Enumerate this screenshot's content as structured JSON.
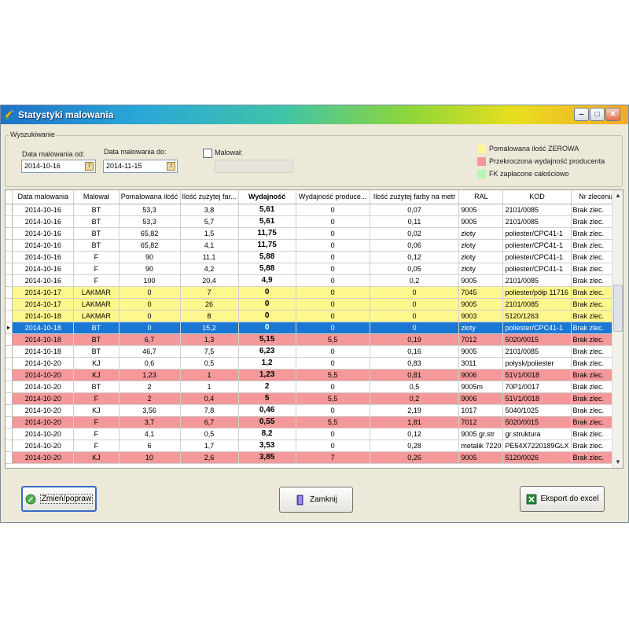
{
  "window": {
    "title": "Statystyki malowania",
    "min": "‒",
    "max": "□",
    "close": "✕"
  },
  "search": {
    "legend": "Wyszukiwanie",
    "date_from_label": "Data malowania od:",
    "date_from_value": "2014-10-16",
    "date_to_label": "Data malowania do:",
    "date_to_value": "2014-11-15",
    "malowal_label": "Malował:"
  },
  "legend": {
    "zero": "Pomalowana ilość ZEROWA",
    "exceeded": "Przekroczona wydajność producenta",
    "paid": "FK zapłacone całościowo"
  },
  "colors": {
    "yellow": "#fdf88e",
    "red": "#f4989a",
    "green": "#b8f5b0",
    "selected": "#1a78d4"
  },
  "columns": [
    "Data malowania",
    "Malował",
    "Pomalowana ilość",
    "Ilość zużytej far...",
    "Wydajność",
    "Wydajność produce...",
    "Ilość zużytej farby na metr",
    "RAL",
    "KOD",
    "Nr zlecenia"
  ],
  "rows": [
    {
      "type": "white",
      "cells": [
        "2014-10-16",
        "BT",
        "53,3",
        "3,8",
        "5,61",
        "0",
        "0,07",
        "9005",
        "2101/0085",
        "Brak zlec."
      ]
    },
    {
      "type": "white",
      "cells": [
        "2014-10-16",
        "BT",
        "53,3",
        "5,7",
        "5,61",
        "0",
        "0,11",
        "9005",
        "2101/0085",
        "Brak zlec."
      ]
    },
    {
      "type": "white",
      "cells": [
        "2014-10-16",
        "BT",
        "65,82",
        "1,5",
        "11,75",
        "0",
        "0,02",
        "złoty",
        "poliester/CPC41-1",
        "Brak zlec."
      ]
    },
    {
      "type": "white",
      "cells": [
        "2014-10-16",
        "BT",
        "65,82",
        "4,1",
        "11,75",
        "0",
        "0,06",
        "złoty",
        "poliester/CPC41-1",
        "Brak zlec."
      ]
    },
    {
      "type": "white",
      "cells": [
        "2014-10-16",
        "F",
        "90",
        "11,1",
        "5,88",
        "0",
        "0,12",
        "złoty",
        "poliester/CPC41-1",
        "Brak zlec."
      ]
    },
    {
      "type": "white",
      "cells": [
        "2014-10-16",
        "F",
        "90",
        "4,2",
        "5,88",
        "0",
        "0,05",
        "złoty",
        "poliester/CPC41-1",
        "Brak zlec."
      ]
    },
    {
      "type": "white",
      "cells": [
        "2014-10-16",
        "F",
        "100",
        "20,4",
        "4,9",
        "0",
        "0,2",
        "9005",
        "2101/0085",
        "Brak zlec."
      ]
    },
    {
      "type": "yellow",
      "cells": [
        "2014-10-17",
        "LAKMAR",
        "0",
        "7",
        "0",
        "0",
        "0",
        "7045",
        "poliester/półp 11716",
        "Brak zlec."
      ]
    },
    {
      "type": "yellow",
      "cells": [
        "2014-10-17",
        "LAKMAR",
        "0",
        "26",
        "0",
        "0",
        "0",
        "9005",
        "2101/0085",
        "Brak zlec."
      ]
    },
    {
      "type": "yellow",
      "cells": [
        "2014-10-18",
        "LAKMAR",
        "0",
        "8",
        "0",
        "0",
        "0",
        "9003",
        "5120/1263",
        "Brak zlec."
      ]
    },
    {
      "type": "sel",
      "cells": [
        "2014-10-18",
        "BT",
        "0",
        "15,2",
        "0",
        "0",
        "0",
        "złoty",
        "poliester/CPC41-1",
        "Brak zlec."
      ]
    },
    {
      "type": "red",
      "cells": [
        "2014-10-18",
        "BT",
        "6,7",
        "1,3",
        "5,15",
        "5,5",
        "0,19",
        "7012",
        "5020/0015",
        "Brak zlec."
      ]
    },
    {
      "type": "white",
      "cells": [
        "2014-10-18",
        "BT",
        "46,7",
        "7,5",
        "6,23",
        "0",
        "0,16",
        "9005",
        "2101/0085",
        "Brak zlec."
      ]
    },
    {
      "type": "white",
      "cells": [
        "2014-10-20",
        "KJ",
        "0,6",
        "0,5",
        "1,2",
        "0",
        "0,83",
        "3011",
        "połysk/poliester",
        "Brak zlec."
      ]
    },
    {
      "type": "red",
      "cells": [
        "2014-10-20",
        "KJ",
        "1,23",
        "1",
        "1,23",
        "5,5",
        "0,81",
        "9006",
        "51V1/0018",
        "Brak zlec."
      ]
    },
    {
      "type": "white",
      "cells": [
        "2014-10-20",
        "BT",
        "2",
        "1",
        "2",
        "0",
        "0,5",
        "9005m",
        "70P1/0017",
        "Brak zlec."
      ]
    },
    {
      "type": "red",
      "cells": [
        "2014-10-20",
        "F",
        "2",
        "0,4",
        "5",
        "5,5",
        "0,2",
        "9006",
        "51V1/0018",
        "Brak zlec."
      ]
    },
    {
      "type": "white",
      "cells": [
        "2014-10-20",
        "KJ",
        "3,56",
        "7,8",
        "0,46",
        "0",
        "2,19",
        "1017",
        "5040/1025",
        "Brak zlec."
      ]
    },
    {
      "type": "red",
      "cells": [
        "2014-10-20",
        "F",
        "3,7",
        "6,7",
        "0,55",
        "5,5",
        "1,81",
        "7012",
        "5020/0015",
        "Brak zlec."
      ]
    },
    {
      "type": "white",
      "cells": [
        "2014-10-20",
        "F",
        "4,1",
        "0,5",
        "8,2",
        "0",
        "0,12",
        "9005 gr.str",
        "gr.struktura",
        "Brak zlec."
      ]
    },
    {
      "type": "white",
      "cells": [
        "2014-10-20",
        "F",
        "6",
        "1,7",
        "3,53",
        "0",
        "0,28",
        "metalik 7220",
        "PE54X7220189GLX",
        "Brak zlec."
      ]
    },
    {
      "type": "red",
      "cells": [
        "2014-10-20",
        "KJ",
        "10",
        "2,6",
        "3,85",
        "7",
        "0,26",
        "9005",
        "5120/0026",
        "Brak zlec."
      ]
    }
  ],
  "buttons": {
    "edit": "Zmień/popraw",
    "close": "Zamknij",
    "export": "Eksport do excel"
  }
}
